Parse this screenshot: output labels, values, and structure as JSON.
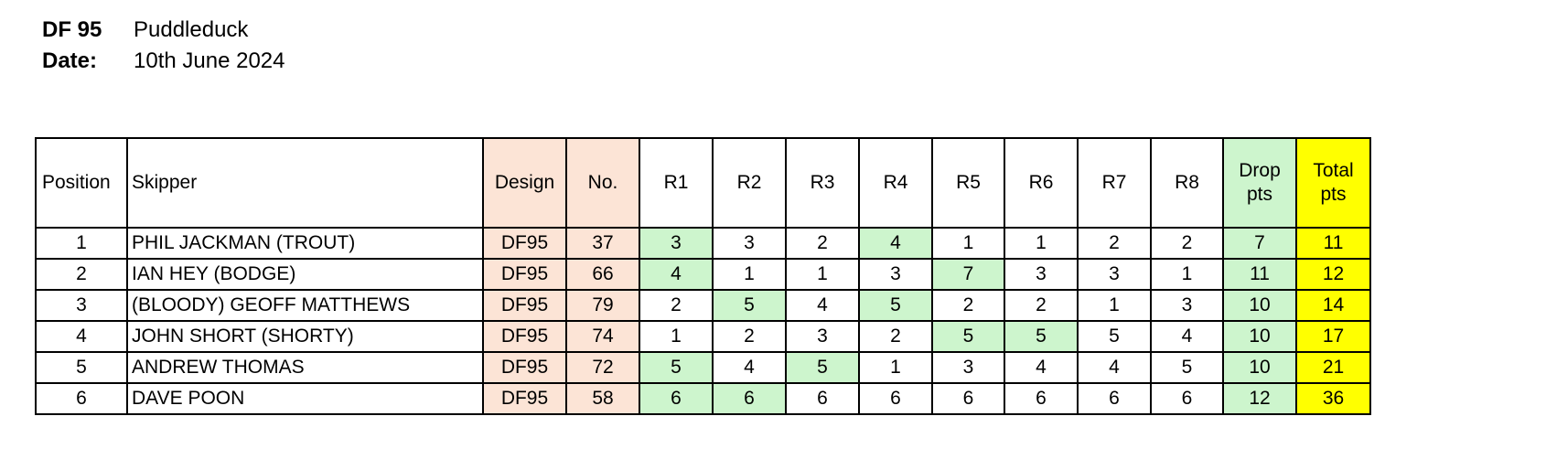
{
  "header": {
    "class_label": "DF 95",
    "venue": "Puddleduck",
    "date_label": "Date:",
    "date": "10th June 2024"
  },
  "columns": [
    "Position",
    "Skipper",
    "Design",
    "No.",
    "R1",
    "R2",
    "R3",
    "R4",
    "R5",
    "R6",
    "R7",
    "R8",
    "Drop pts",
    "Total pts"
  ],
  "colors": {
    "design_bg": "#fce4d6",
    "dropped_bg": "#cdf5cd",
    "total_bg": "#ffff00"
  },
  "rows": [
    {
      "position": "1",
      "skipper": "PHIL JACKMAN (TROUT)",
      "design": "DF95",
      "no": "37",
      "races": [
        "3",
        "3",
        "2",
        "4",
        "1",
        "1",
        "2",
        "2"
      ],
      "dropped": [
        0,
        3
      ],
      "drop_pts": "7",
      "total_pts": "11"
    },
    {
      "position": "2",
      "skipper": "IAN HEY (BODGE)",
      "design": "DF95",
      "no": "66",
      "races": [
        "4",
        "1",
        "1",
        "3",
        "7",
        "3",
        "3",
        "1"
      ],
      "dropped": [
        0,
        4
      ],
      "drop_pts": "11",
      "total_pts": "12"
    },
    {
      "position": "3",
      "skipper": "(BLOODY) GEOFF MATTHEWS",
      "design": "DF95",
      "no": "79",
      "races": [
        "2",
        "5",
        "4",
        "5",
        "2",
        "2",
        "1",
        "3"
      ],
      "dropped": [
        1,
        3
      ],
      "drop_pts": "10",
      "total_pts": "14"
    },
    {
      "position": "4",
      "skipper": "JOHN SHORT (SHORTY)",
      "design": "DF95",
      "no": "74",
      "races": [
        "1",
        "2",
        "3",
        "2",
        "5",
        "5",
        "5",
        "4"
      ],
      "dropped": [
        4,
        5
      ],
      "drop_pts": "10",
      "total_pts": "17"
    },
    {
      "position": "5",
      "skipper": "ANDREW THOMAS",
      "design": "DF95",
      "no": "72",
      "races": [
        "5",
        "4",
        "5",
        "1",
        "3",
        "4",
        "4",
        "5"
      ],
      "dropped": [
        0,
        2
      ],
      "drop_pts": "10",
      "total_pts": "21"
    },
    {
      "position": "6",
      "skipper": "DAVE POON",
      "design": "DF95",
      "no": "58",
      "races": [
        "6",
        "6",
        "6",
        "6",
        "6",
        "6",
        "6",
        "6"
      ],
      "dropped": [
        0,
        1
      ],
      "drop_pts": "12",
      "total_pts": "36"
    }
  ]
}
